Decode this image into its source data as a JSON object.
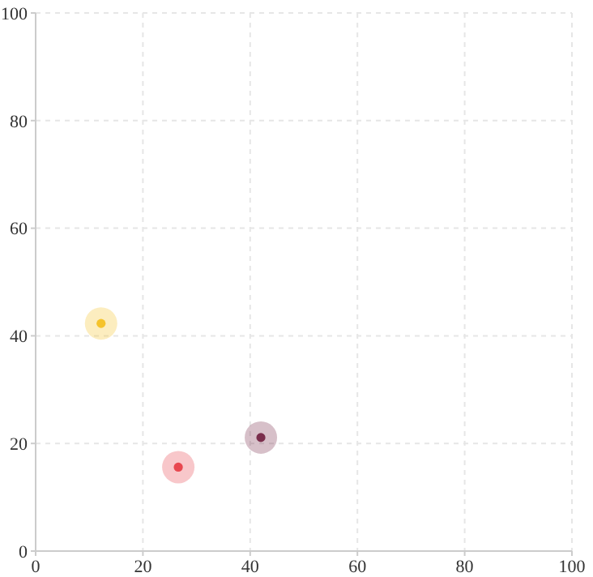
{
  "chart_data": {
    "type": "scatter",
    "xlim": [
      0,
      100
    ],
    "ylim": [
      0,
      100
    ],
    "xticks": [
      0,
      20,
      40,
      60,
      80,
      100
    ],
    "yticks": [
      0,
      20,
      40,
      60,
      80,
      100
    ],
    "grid": true,
    "marker": "circle",
    "series": [
      {
        "color": "#f5c32c",
        "x": [
          12.2
        ],
        "values": [
          42.3
        ]
      },
      {
        "color": "#e8474f",
        "x": [
          26.6
        ],
        "values": [
          15.6
        ]
      },
      {
        "color": "#7a2e4c",
        "x": [
          42
        ],
        "values": [
          21.1
        ]
      }
    ]
  }
}
